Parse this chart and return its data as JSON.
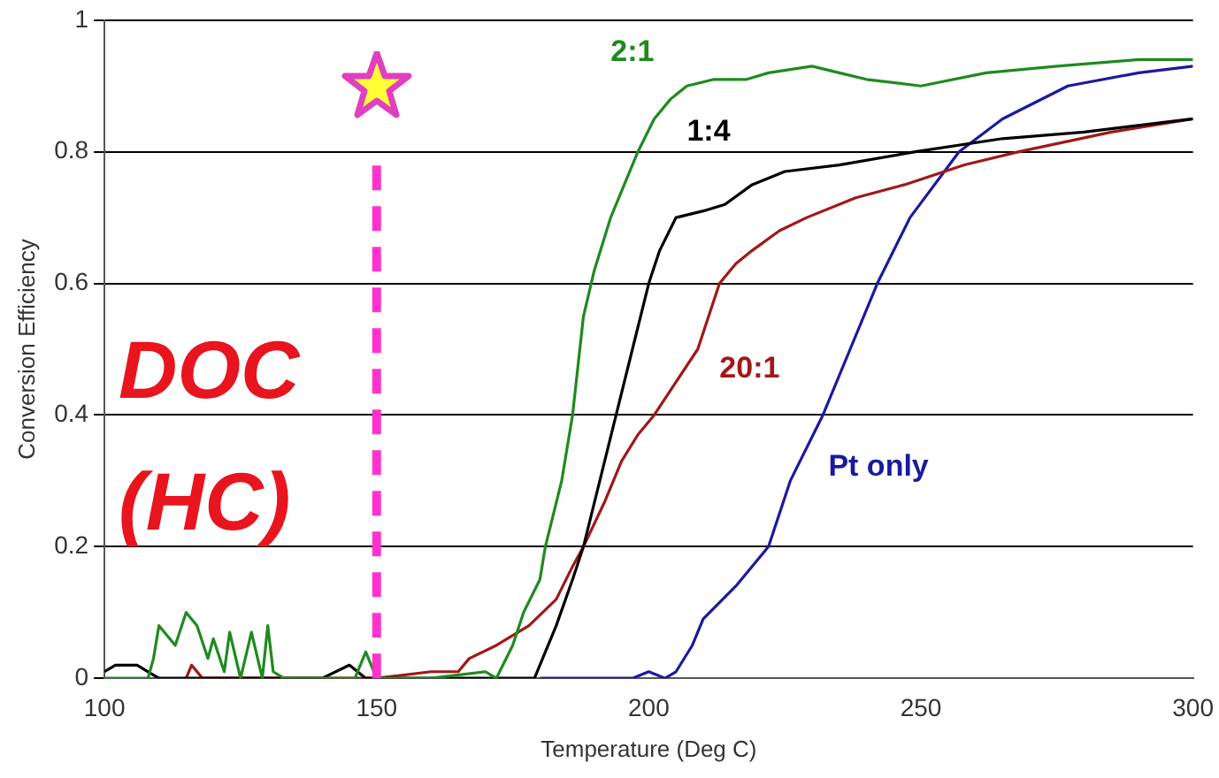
{
  "chart_data": {
    "type": "line",
    "xlabel": "Temperature (Deg C)",
    "ylabel": "Conversion Efficiency",
    "xlim": [
      100,
      300
    ],
    "xticks": [
      100,
      150,
      200,
      250,
      300
    ],
    "ylim": [
      0,
      1
    ],
    "yticks": [
      0,
      0.2,
      0.4,
      0.6,
      0.8,
      1
    ],
    "grid": "y",
    "legend": false,
    "marker": "none",
    "line_style": "solid",
    "annotations": [
      "DOC (HC)"
    ],
    "ref_lines": [
      {
        "axis": "x",
        "value": 150,
        "color": "#ff33cc",
        "line_style": "dashed"
      }
    ],
    "series": [
      {
        "name": "2:1",
        "color": "#1f8a1f",
        "x": [
          100,
          108,
          109,
          110,
          112,
          113,
          115,
          117,
          119,
          120,
          122,
          123,
          125,
          127,
          129,
          130,
          131,
          133,
          146,
          148,
          150,
          160,
          170,
          172,
          175,
          177,
          180,
          181,
          184,
          186,
          188,
          190,
          193,
          196,
          198,
          201,
          204,
          207,
          212,
          218,
          222,
          230,
          235,
          240,
          250,
          262,
          275,
          290,
          300
        ],
        "values": [
          0,
          0,
          0.03,
          0.08,
          0.06,
          0.05,
          0.1,
          0.08,
          0.03,
          0.06,
          0.01,
          0.07,
          0,
          0.07,
          0,
          0.08,
          0.01,
          0,
          0,
          0.04,
          0,
          0,
          0.01,
          0,
          0.05,
          0.1,
          0.15,
          0.2,
          0.3,
          0.4,
          0.55,
          0.62,
          0.7,
          0.76,
          0.8,
          0.85,
          0.88,
          0.9,
          0.91,
          0.91,
          0.92,
          0.93,
          0.92,
          0.91,
          0.9,
          0.92,
          0.93,
          0.94,
          0.94
        ]
      },
      {
        "name": "1:4",
        "color": "#000000",
        "x": [
          100,
          102,
          104,
          106,
          108,
          110,
          140,
          145,
          148,
          150,
          175,
          179,
          183,
          186,
          188,
          191,
          194,
          197,
          200,
          202,
          205,
          210,
          214,
          219,
          225,
          235,
          249,
          265,
          280,
          300
        ],
        "values": [
          0.01,
          0.02,
          0.02,
          0.02,
          0.01,
          0,
          0,
          0.02,
          0,
          0,
          0,
          0,
          0.08,
          0.15,
          0.2,
          0.3,
          0.4,
          0.5,
          0.6,
          0.65,
          0.7,
          0.71,
          0.72,
          0.75,
          0.77,
          0.78,
          0.8,
          0.82,
          0.83,
          0.85
        ]
      },
      {
        "name": "20:1",
        "color": "#a01818",
        "x": [
          115,
          116,
          118,
          150,
          160,
          165,
          167,
          172,
          178,
          183,
          186,
          188,
          192,
          195,
          198,
          201,
          205,
          209,
          213,
          216,
          219,
          224,
          229,
          238,
          247,
          258,
          268,
          285,
          300
        ],
        "values": [
          0,
          0.02,
          0,
          0,
          0.01,
          0.01,
          0.03,
          0.05,
          0.08,
          0.12,
          0.17,
          0.2,
          0.27,
          0.33,
          0.37,
          0.4,
          0.45,
          0.5,
          0.6,
          0.63,
          0.65,
          0.68,
          0.7,
          0.73,
          0.75,
          0.78,
          0.8,
          0.83,
          0.85
        ]
      },
      {
        "name": "Pt only",
        "color": "#1a1aa0",
        "x": [
          180,
          197,
          200,
          203,
          205,
          208,
          210,
          216,
          222,
          226,
          232,
          237,
          242,
          248,
          257,
          265,
          277,
          290,
          300
        ],
        "values": [
          0,
          0,
          0.01,
          0,
          0.01,
          0.05,
          0.09,
          0.14,
          0.2,
          0.3,
          0.4,
          0.5,
          0.6,
          0.7,
          0.8,
          0.85,
          0.9,
          0.92,
          0.93
        ]
      }
    ]
  }
}
